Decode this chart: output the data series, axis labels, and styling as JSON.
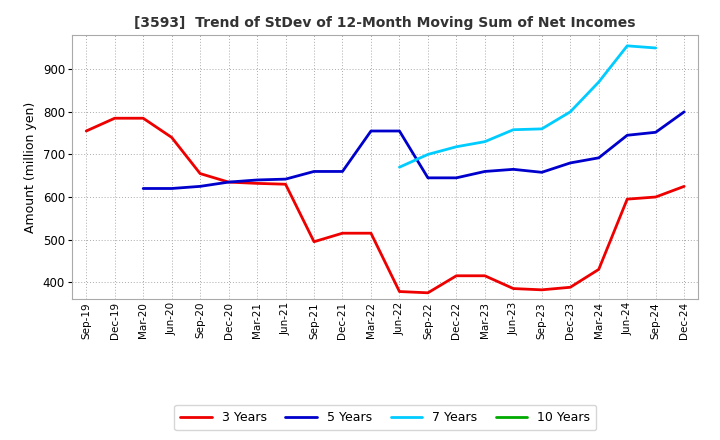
{
  "title": "[3593]  Trend of StDev of 12-Month Moving Sum of Net Incomes",
  "ylabel": "Amount (million yen)",
  "background_color": "#ffffff",
  "plot_bg_color": "#ffffff",
  "ylim": [
    360,
    980
  ],
  "yticks": [
    400,
    500,
    600,
    700,
    800,
    900
  ],
  "x_labels": [
    "Sep-19",
    "Dec-19",
    "Mar-20",
    "Jun-20",
    "Sep-20",
    "Dec-20",
    "Mar-21",
    "Jun-21",
    "Sep-21",
    "Dec-21",
    "Mar-22",
    "Jun-22",
    "Sep-22",
    "Dec-22",
    "Mar-23",
    "Jun-23",
    "Sep-23",
    "Dec-23",
    "Mar-24",
    "Jun-24",
    "Sep-24",
    "Dec-24"
  ],
  "series": {
    "3 Years": {
      "color": "#ee0000",
      "linewidth": 2.0,
      "values": [
        755,
        785,
        785,
        740,
        655,
        635,
        632,
        630,
        495,
        515,
        515,
        378,
        375,
        415,
        415,
        385,
        382,
        388,
        430,
        595,
        600,
        625
      ]
    },
    "5 Years": {
      "color": "#0000cc",
      "linewidth": 2.0,
      "values": [
        null,
        null,
        620,
        620,
        625,
        635,
        640,
        642,
        660,
        660,
        755,
        755,
        645,
        645,
        660,
        665,
        658,
        680,
        692,
        745,
        752,
        800
      ]
    },
    "7 Years": {
      "color": "#00ccff",
      "linewidth": 2.0,
      "values": [
        null,
        null,
        null,
        null,
        null,
        null,
        null,
        null,
        null,
        null,
        null,
        670,
        700,
        718,
        730,
        758,
        760,
        800,
        870,
        955,
        950,
        null
      ]
    },
    "10 Years": {
      "color": "#00aa00",
      "linewidth": 2.0,
      "values": [
        null,
        null,
        null,
        null,
        null,
        null,
        null,
        null,
        null,
        null,
        null,
        null,
        null,
        null,
        null,
        null,
        null,
        null,
        null,
        null,
        null,
        null
      ]
    }
  }
}
